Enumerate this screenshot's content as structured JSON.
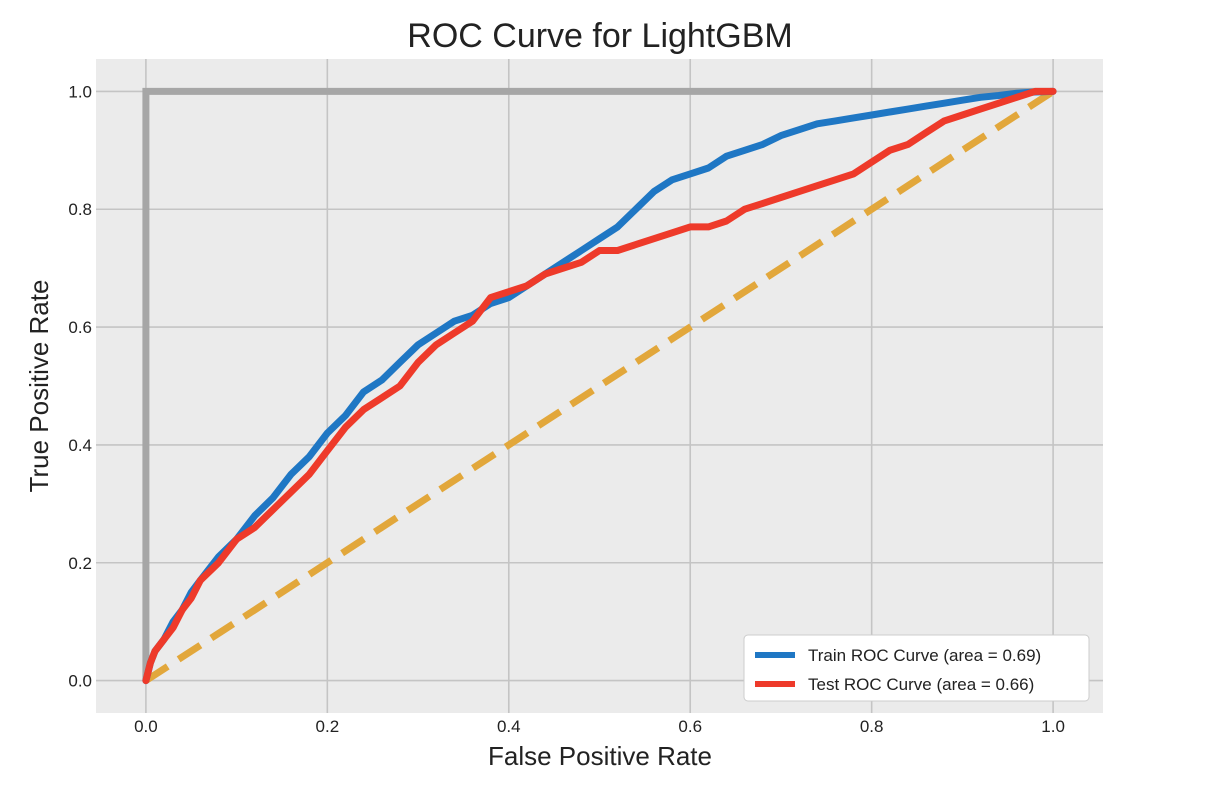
{
  "chart_data": {
    "type": "line",
    "title": "ROC Curve for LightGBM",
    "xlabel": "False Positive Rate",
    "ylabel": "True Positive Rate",
    "xlim": [
      -0.055,
      1.055
    ],
    "ylim": [
      -0.055,
      1.055
    ],
    "x_ticks": [
      0.0,
      0.2,
      0.4,
      0.6,
      0.8,
      1.0
    ],
    "y_ticks": [
      0.0,
      0.2,
      0.4,
      0.6,
      0.8,
      1.0
    ],
    "x_tick_labels": [
      "0.0",
      "0.2",
      "0.4",
      "0.6",
      "0.8",
      "1.0"
    ],
    "y_tick_labels": [
      "0.0",
      "0.2",
      "0.4",
      "0.6",
      "0.8",
      "1.0"
    ],
    "grid": true,
    "legend_position": "bottom-right",
    "colors": {
      "train": "#1f77c4",
      "test": "#ee3a2a",
      "perfect": "#a6a6a6",
      "chance": "#e2a73b",
      "plot_bg": "#ebebeb",
      "grid": "#c4c4c4"
    },
    "series": [
      {
        "name": "Train ROC Curve (area = 0.69)",
        "x": [
          0.0,
          0.005,
          0.01,
          0.02,
          0.03,
          0.04,
          0.05,
          0.06,
          0.08,
          0.1,
          0.12,
          0.14,
          0.16,
          0.18,
          0.2,
          0.22,
          0.24,
          0.26,
          0.28,
          0.3,
          0.32,
          0.34,
          0.36,
          0.38,
          0.4,
          0.42,
          0.44,
          0.46,
          0.48,
          0.5,
          0.52,
          0.54,
          0.56,
          0.58,
          0.6,
          0.62,
          0.64,
          0.66,
          0.68,
          0.7,
          0.72,
          0.74,
          0.76,
          0.78,
          0.8,
          0.82,
          0.84,
          0.86,
          0.88,
          0.9,
          0.92,
          0.94,
          0.96,
          0.98,
          1.0
        ],
        "y": [
          0.0,
          0.03,
          0.05,
          0.07,
          0.1,
          0.12,
          0.15,
          0.17,
          0.21,
          0.24,
          0.28,
          0.31,
          0.35,
          0.38,
          0.42,
          0.45,
          0.49,
          0.51,
          0.54,
          0.57,
          0.59,
          0.61,
          0.62,
          0.64,
          0.65,
          0.67,
          0.69,
          0.71,
          0.73,
          0.75,
          0.77,
          0.8,
          0.83,
          0.85,
          0.86,
          0.87,
          0.89,
          0.9,
          0.91,
          0.925,
          0.935,
          0.945,
          0.95,
          0.955,
          0.96,
          0.965,
          0.97,
          0.975,
          0.98,
          0.985,
          0.99,
          0.993,
          0.997,
          0.999,
          1.0
        ]
      },
      {
        "name": "Test ROC Curve (area = 0.66)",
        "x": [
          0.0,
          0.005,
          0.01,
          0.02,
          0.03,
          0.04,
          0.05,
          0.06,
          0.08,
          0.1,
          0.12,
          0.14,
          0.16,
          0.18,
          0.2,
          0.22,
          0.24,
          0.26,
          0.28,
          0.3,
          0.32,
          0.34,
          0.36,
          0.38,
          0.4,
          0.42,
          0.44,
          0.46,
          0.48,
          0.5,
          0.52,
          0.54,
          0.56,
          0.58,
          0.6,
          0.62,
          0.64,
          0.66,
          0.68,
          0.7,
          0.72,
          0.74,
          0.76,
          0.78,
          0.8,
          0.82,
          0.84,
          0.86,
          0.88,
          0.9,
          0.92,
          0.94,
          0.96,
          0.98,
          1.0
        ],
        "y": [
          0.0,
          0.03,
          0.05,
          0.07,
          0.09,
          0.12,
          0.14,
          0.17,
          0.2,
          0.24,
          0.26,
          0.29,
          0.32,
          0.35,
          0.39,
          0.43,
          0.46,
          0.48,
          0.5,
          0.54,
          0.57,
          0.59,
          0.61,
          0.65,
          0.66,
          0.67,
          0.69,
          0.7,
          0.71,
          0.73,
          0.73,
          0.74,
          0.75,
          0.76,
          0.77,
          0.77,
          0.78,
          0.8,
          0.81,
          0.82,
          0.83,
          0.84,
          0.85,
          0.86,
          0.88,
          0.9,
          0.91,
          0.93,
          0.95,
          0.96,
          0.97,
          0.98,
          0.99,
          1.0,
          1.0
        ]
      },
      {
        "x": [
          0.0,
          0.0,
          1.0
        ],
        "y": [
          0.0,
          1.0,
          1.0
        ]
      },
      {
        "x": [
          0.0,
          1.0
        ],
        "y": [
          0.0,
          1.0
        ]
      }
    ]
  }
}
